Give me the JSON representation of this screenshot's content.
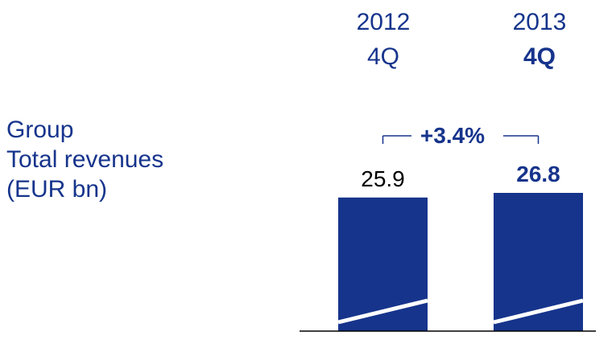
{
  "label": {
    "line1": "Group",
    "line2": "Total revenues",
    "line3": "(EUR bn)"
  },
  "columns": [
    {
      "year": "2012",
      "quarter": "4Q"
    },
    {
      "year": "2013",
      "quarter": "4Q"
    }
  ],
  "chart_data": {
    "type": "bar",
    "categories": [
      "2012 4Q",
      "2013 4Q"
    ],
    "values": [
      25.9,
      26.8
    ],
    "value_labels": [
      "25.9",
      "26.8"
    ],
    "change_label": "+3.4%",
    "colors": {
      "bar": "#16348c",
      "text": "#16348c",
      "accent": "#ffffff",
      "baseline": "#000000"
    }
  }
}
